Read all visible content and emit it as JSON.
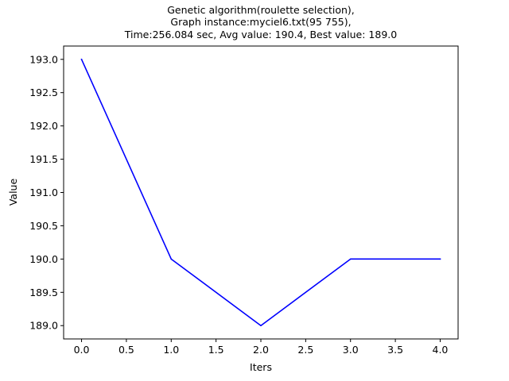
{
  "chart_data": {
    "type": "line",
    "title_lines": [
      "Genetic algorithm(roulette selection),",
      "Graph instance:myciel6.txt(95 755),",
      "Time:256.084 sec, Avg value: 190.4, Best value: 189.0"
    ],
    "xlabel": "Iters",
    "ylabel": "Value",
    "x": [
      0,
      1,
      2,
      3,
      4
    ],
    "series": [
      {
        "values": [
          193.0,
          190.0,
          189.0,
          190.0,
          190.0
        ],
        "color": "#0000ff"
      }
    ],
    "xlim": [
      -0.2,
      4.2
    ],
    "ylim": [
      188.8,
      193.2
    ],
    "xticks": [
      0.0,
      0.5,
      1.0,
      1.5,
      2.0,
      2.5,
      3.0,
      3.5,
      4.0
    ],
    "xtick_labels": [
      "0.0",
      "0.5",
      "1.0",
      "1.5",
      "2.0",
      "2.5",
      "3.0",
      "3.5",
      "4.0"
    ],
    "yticks": [
      189.0,
      189.5,
      190.0,
      190.5,
      191.0,
      191.5,
      192.0,
      192.5,
      193.0
    ],
    "ytick_labels": [
      "189.0",
      "189.5",
      "190.0",
      "190.5",
      "191.0",
      "191.5",
      "192.0",
      "192.5",
      "193.0"
    ],
    "grid": false,
    "legend": "none"
  }
}
